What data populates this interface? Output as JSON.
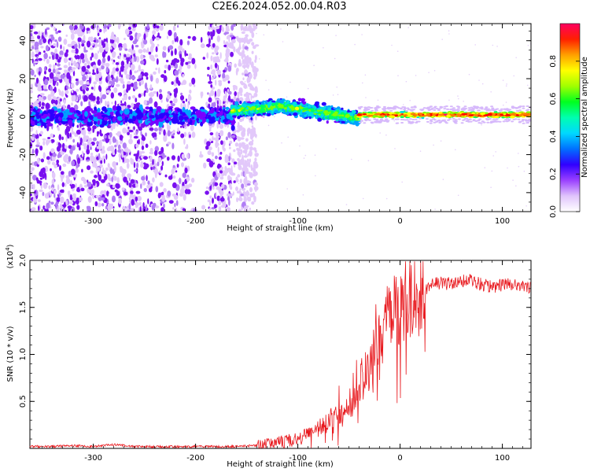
{
  "title": "C2E6.2024.052.00.04.R03",
  "chart_data": [
    {
      "type": "heatmap",
      "xlabel": "Height of straight line (km)",
      "ylabel": "Frequency (Hz)",
      "xlim": [
        -362,
        128
      ],
      "ylim": [
        -50,
        49
      ],
      "x_ticks": [
        -300,
        -200,
        -100,
        0,
        100
      ],
      "y_ticks": [
        -40,
        -20,
        0,
        20,
        40
      ],
      "grid": false,
      "colorbar": {
        "label": "Normalized spectral amplitude",
        "range": [
          0,
          1
        ],
        "ticks": [
          0.0,
          0.2,
          0.4,
          0.6,
          0.8
        ],
        "colormap": [
          "#ffffff",
          "#d9b3ff",
          "#7a00ff",
          "#2a00ff",
          "#00a0ff",
          "#00e0e0",
          "#00ff60",
          "#7fff00",
          "#ffff00",
          "#ff8000",
          "#ff0000",
          "#ff0080"
        ]
      },
      "description_ranges": [
        {
          "x_from": -362,
          "x_to": -200,
          "pattern": "broadband noise, purple scatter over full band"
        },
        {
          "x_from": -200,
          "x_to": -165,
          "pattern": "broadband noise, weaker"
        },
        {
          "x_from": -165,
          "x_to": -40,
          "pattern": "concentrated band near 0 to 10 Hz, cyan/green"
        },
        {
          "x_from": -40,
          "x_to": 128,
          "pattern": "narrow strong line near 0-2 Hz, red/yellow"
        }
      ]
    },
    {
      "type": "line",
      "xlabel": "Height of straight line (km)",
      "ylabel": "SNR (10 * v/v)",
      "y_multiplier": "(x10",
      "y_multiplier_exp": "4",
      "xlim": [
        -362,
        128
      ],
      "ylim": [
        0,
        2.0
      ],
      "x_ticks": [
        -300,
        -200,
        -100,
        0,
        100
      ],
      "y_ticks": [
        0.5,
        1.0,
        1.5,
        2.0
      ],
      "y_tick_labels": [
        "0.5",
        "1.0",
        "1.5",
        "2.0"
      ],
      "line_color": "#e8191e",
      "series": [
        {
          "x": [
            -362,
            -340,
            -320,
            -300,
            -280,
            -260,
            -240,
            -220,
            -200,
            -180,
            -160,
            -140,
            -130,
            -120,
            -110,
            -100,
            -90,
            -80,
            -70,
            -60,
            -50,
            -45,
            -40,
            -35,
            -30,
            -25,
            -20,
            -15,
            -10,
            -5,
            0,
            5,
            10,
            15,
            20,
            25,
            30,
            40,
            50,
            60,
            70,
            80,
            90,
            100,
            110,
            120,
            128
          ],
          "values": [
            0.02,
            0.02,
            0.03,
            0.02,
            0.04,
            0.02,
            0.02,
            0.02,
            0.02,
            0.02,
            0.02,
            0.03,
            0.05,
            0.06,
            0.08,
            0.1,
            0.14,
            0.22,
            0.3,
            0.35,
            0.42,
            0.5,
            0.6,
            0.8,
            0.85,
            1.05,
            1.2,
            1.3,
            1.4,
            1.45,
            1.55,
            1.6,
            1.6,
            1.62,
            1.62,
            1.68,
            1.75,
            1.76,
            1.75,
            1.78,
            1.78,
            1.74,
            1.72,
            1.74,
            1.74,
            1.72,
            1.72
          ]
        }
      ]
    }
  ]
}
